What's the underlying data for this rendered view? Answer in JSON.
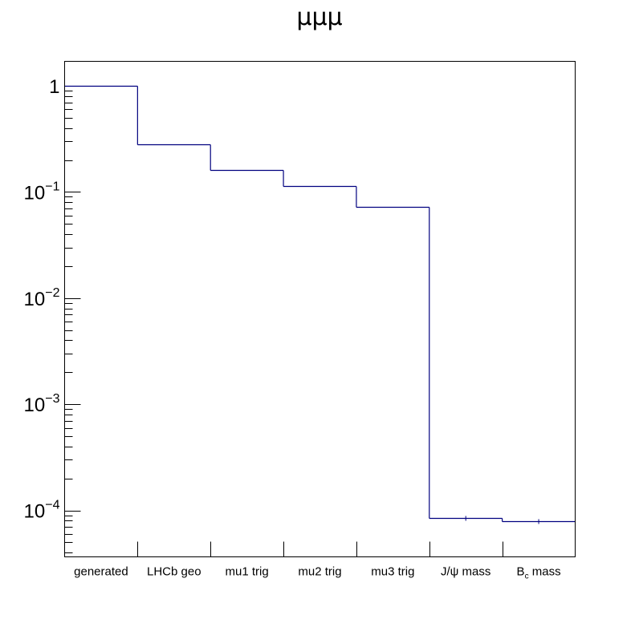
{
  "chart_data": {
    "type": "bar",
    "style": "step-histogram",
    "title": "μμμ",
    "xlabel": "",
    "ylabel": "",
    "y_scale": "log",
    "ylim": [
      3.65e-05,
      1.7
    ],
    "grid": false,
    "legend": "none",
    "line_color": "#00007f",
    "categories": [
      "generated",
      "LHCb geo",
      "mu1 trig",
      "mu2 trig",
      "mu3 trig",
      "J/ψ mass",
      "B_c mass"
    ],
    "category_labels": [
      {
        "text": "generated"
      },
      {
        "text": "LHCb geo"
      },
      {
        "text": "mu1 trig"
      },
      {
        "text": "mu2 trig"
      },
      {
        "text": "mu3 trig"
      },
      {
        "text": "J/ψ mass"
      },
      {
        "text": "B",
        "sub": "c",
        "suffix": " mass"
      }
    ],
    "values": [
      1.0,
      0.28,
      0.16,
      0.113,
      0.072,
      8.45e-05,
      7.85e-05
    ],
    "y_ticks": [
      {
        "base": "",
        "exp": "",
        "text": "1",
        "value": 1
      },
      {
        "base": "10",
        "exp": "−1",
        "text": "",
        "value": 0.1
      },
      {
        "base": "10",
        "exp": "−2",
        "text": "",
        "value": 0.01
      },
      {
        "base": "10",
        "exp": "−3",
        "text": "",
        "value": 0.001
      },
      {
        "base": "10",
        "exp": "−4",
        "text": "",
        "value": 0.0001
      }
    ]
  }
}
